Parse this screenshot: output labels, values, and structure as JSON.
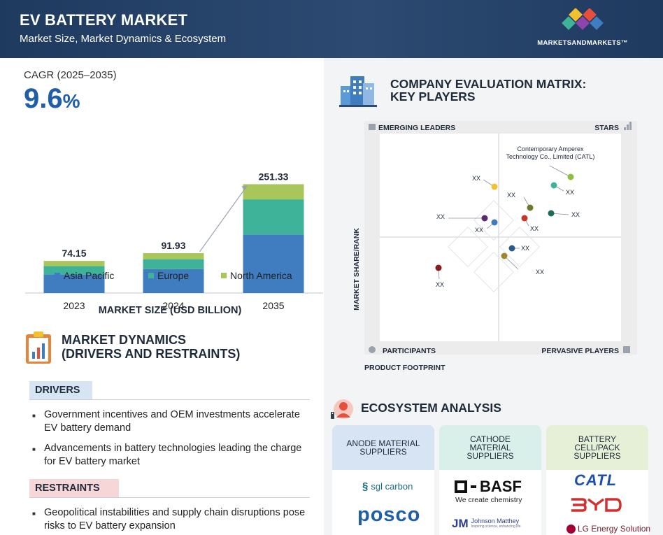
{
  "header": {
    "title": "EV BATTERY MARKET",
    "subtitle": "Market Size, Market Dynamics & Ecosystem",
    "logo_text": "MARKETSANDMARKETS™"
  },
  "cagr": {
    "label": "CAGR (2025–2035)",
    "value": "9.6",
    "unit": "%"
  },
  "chart_data": {
    "type": "bar",
    "stacked": true,
    "categories": [
      "2023",
      "2024",
      "2035"
    ],
    "totals": [
      "74.15",
      "91.93",
      "251.33"
    ],
    "series": [
      {
        "name": "Asia Pacific",
        "color": "#3f7dc0",
        "values": [
          43,
          55,
          135
        ]
      },
      {
        "name": "Europe",
        "color": "#3fb39a",
        "values": [
          19,
          23,
          81
        ]
      },
      {
        "name": "North America",
        "color": "#a8c65a",
        "values": [
          12,
          14,
          35
        ]
      }
    ],
    "title": "MARKET SIZE (USD BILLION)",
    "legend_position": "bottom",
    "grid": false
  },
  "market_dynamics": {
    "title_line1": "MARKET DYNAMICS",
    "title_line2": "(DRIVERS AND RESTRAINTS)",
    "drivers_label": "DRIVERS",
    "drivers": [
      "Government incentives and OEM investments accelerate EV battery demand",
      "Advancements in battery technologies leading the charge for EV battery market"
    ],
    "restraints_label": "RESTRAINTS",
    "restraints": [
      "Geopolitical instabilities and supply chain disruptions pose risks to EV battery expansion"
    ]
  },
  "matrix": {
    "title_line1": "COMPANY EVALUATION MATRIX:",
    "title_line2": "KEY PLAYERS",
    "quadrants": {
      "top_left": "EMERGING LEADERS",
      "top_right": "STARS",
      "bottom_left": "PARTICIPANTS",
      "bottom_right": "PERVASIVE PLAYERS"
    },
    "y_axis": "MARKET SHARE/RANK",
    "x_axis": "PRODUCT FOOTPRINT",
    "leader_line1": "Contemporary Amperex",
    "leader_line2": "Technology Co., Limited (CATL)",
    "placeholder": "XX",
    "dot_colors": [
      "#8cbf3f",
      "#3fb39a",
      "#6b7a2a",
      "#1f6b5a",
      "#c0392b",
      "#f2c12e",
      "#5a2a6b",
      "#3f7dc0",
      "#2c5a8a",
      "#a0852c",
      "#8b1a1a"
    ]
  },
  "ecosystem": {
    "title": "ECOSYSTEM ANALYSIS",
    "columns": [
      {
        "label": "ANODE MATERIAL SUPPLIERS",
        "color": "#d6e4f3",
        "brands": [
          "sgl carbon",
          "POSCO"
        ]
      },
      {
        "label": "CATHODE MATERIAL SUPPLIERS",
        "color": "#d9f0ea",
        "brands": [
          "BASF",
          "We create chemistry",
          "Johnson Matthey",
          "Inspiring science, enhancing life"
        ]
      },
      {
        "label": "BATTERY CELL/PACK SUPPLIERS",
        "color": "#e6f0d6",
        "brands": [
          "CATL",
          "BYD",
          "LG Energy Solution"
        ]
      }
    ]
  }
}
